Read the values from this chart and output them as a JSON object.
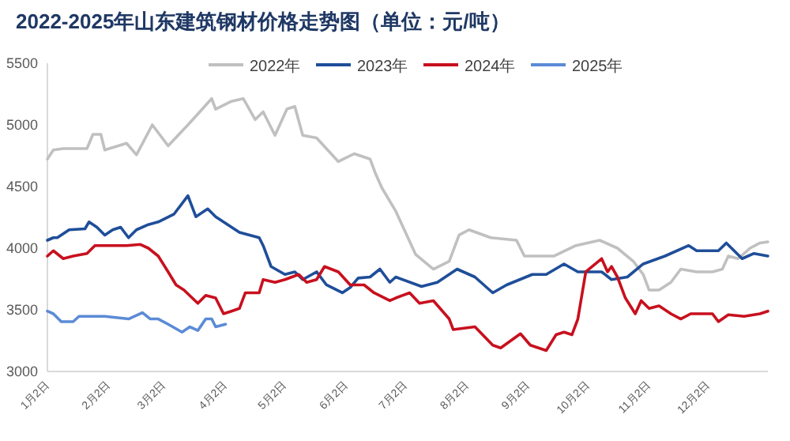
{
  "chart_data": {
    "type": "line",
    "title": "2022-2025年山东建筑钢材价格走势图（单位：元/吨）",
    "legend": "top",
    "xlim": [
      "--01-01",
      "--12-31"
    ],
    "xticks": [
      {
        "value": "--01-02",
        "label": "1月2日"
      },
      {
        "value": "--02-02",
        "label": "2月2日"
      },
      {
        "value": "--03-02",
        "label": "3月2日"
      },
      {
        "value": "--04-02",
        "label": "4月2日"
      },
      {
        "value": "--05-02",
        "label": "5月2日"
      },
      {
        "value": "--06-02",
        "label": "6月2日"
      },
      {
        "value": "--07-02",
        "label": "7月2日"
      },
      {
        "value": "--08-02",
        "label": "8月2日"
      },
      {
        "value": "--09-02",
        "label": "9月2日"
      },
      {
        "value": "--10-02",
        "label": "10月2日"
      },
      {
        "value": "--11-02",
        "label": "11月2日"
      },
      {
        "value": "--12-02",
        "label": "12月2日"
      }
    ],
    "ylim": [
      3000,
      5500
    ],
    "yticks": [
      3000,
      3500,
      4000,
      4500,
      5000,
      5500
    ],
    "series": [
      {
        "name": "2022年",
        "color": "#c0c0c0",
        "x": [
          "--01-01",
          "--01-04",
          "--01-09",
          "--01-21",
          "--01-24",
          "--01-28",
          "--01-30",
          "--02-10",
          "--02-15",
          "--02-23",
          "--03-03",
          "--03-13",
          "--03-19",
          "--03-25",
          "--03-27",
          "--04-04",
          "--04-10",
          "--04-16",
          "--04-20",
          "--04-26",
          "--05-02",
          "--05-06",
          "--05-10",
          "--05-17",
          "--05-28",
          "--06-05",
          "--06-13",
          "--06-16",
          "--06-19",
          "--06-26",
          "--07-06",
          "--07-15",
          "--07-23",
          "--07-28",
          "--08-02",
          "--08-13",
          "--08-26",
          "--08-30",
          "--09-14",
          "--09-25",
          "--10-07",
          "--10-16",
          "--10-24",
          "--10-29",
          "--11-01",
          "--11-06",
          "--11-12",
          "--11-17",
          "--11-25",
          "--12-03",
          "--12-08",
          "--12-11",
          "--12-16",
          "--12-22",
          "--12-27",
          "--12-31"
        ],
        "values": [
          4723,
          4796,
          4808,
          4808,
          4923,
          4923,
          4796,
          4851,
          4757,
          5000,
          4830,
          5000,
          5106,
          5213,
          5128,
          5191,
          5213,
          5043,
          5106,
          4915,
          5128,
          5149,
          4915,
          4894,
          4702,
          4766,
          4723,
          4596,
          4489,
          4300,
          3950,
          3830,
          3894,
          4106,
          4149,
          4085,
          4064,
          3936,
          3936,
          4021,
          4064,
          4000,
          3894,
          3787,
          3660,
          3660,
          3723,
          3830,
          3808,
          3808,
          3830,
          3936,
          3915,
          4000,
          4042,
          4051
        ]
      },
      {
        "name": "2023年",
        "color": "#1f4e99",
        "x": [
          "--01-01",
          "--01-04",
          "--01-06",
          "--01-12",
          "--01-20",
          "--01-22",
          "--01-26",
          "--01-30",
          "--02-03",
          "--02-07",
          "--02-11",
          "--02-15",
          "--02-21",
          "--02-26",
          "--03-06",
          "--03-13",
          "--03-17",
          "--03-23",
          "--03-27",
          "--04-08",
          "--04-18",
          "--04-20",
          "--04-24",
          "--05-01",
          "--05-06",
          "--05-10",
          "--05-17",
          "--05-22",
          "--05-30",
          "--06-03",
          "--06-07",
          "--06-13",
          "--06-18",
          "--06-23",
          "--06-26",
          "--07-09",
          "--07-17",
          "--07-27",
          "--08-05",
          "--08-14",
          "--08-21",
          "--09-03",
          "--09-10",
          "--09-19",
          "--09-26",
          "--10-08",
          "--10-13",
          "--10-21",
          "--10-29",
          "--11-09",
          "--11-21",
          "--11-25",
          "--12-06",
          "--12-10",
          "--12-18",
          "--12-24",
          "--12-31"
        ],
        "values": [
          4064,
          4085,
          4085,
          4149,
          4157,
          4213,
          4170,
          4106,
          4149,
          4170,
          4085,
          4149,
          4191,
          4213,
          4277,
          4425,
          4255,
          4319,
          4255,
          4128,
          4085,
          4021,
          3851,
          3787,
          3808,
          3745,
          3808,
          3702,
          3638,
          3681,
          3757,
          3766,
          3830,
          3723,
          3766,
          3689,
          3723,
          3830,
          3766,
          3638,
          3702,
          3787,
          3787,
          3872,
          3808,
          3808,
          3745,
          3766,
          3872,
          3936,
          4021,
          3979,
          3979,
          4042,
          3915,
          3957,
          3936
        ]
      },
      {
        "name": "2024年",
        "color": "#c8101e",
        "x": [
          "--01-01",
          "--01-04",
          "--01-09",
          "--01-14",
          "--01-21",
          "--01-25",
          "--01-30",
          "--02-10",
          "--02-17",
          "--02-21",
          "--02-26",
          "--03-03",
          "--03-07",
          "--03-11",
          "--03-18",
          "--03-22",
          "--03-27",
          "--03-31",
          "--04-04",
          "--04-08",
          "--04-11",
          "--04-18",
          "--04-20",
          "--04-26",
          "--05-01",
          "--05-08",
          "--05-12",
          "--05-17",
          "--05-21",
          "--05-28",
          "--06-03",
          "--06-10",
          "--06-15",
          "--06-23",
          "--06-26",
          "--07-03",
          "--07-08",
          "--07-15",
          "--07-23",
          "--07-25",
          "--08-05",
          "--08-14",
          "--08-18",
          "--08-28",
          "--09-02",
          "--09-10",
          "--09-15",
          "--09-19",
          "--09-23",
          "--09-26",
          "--09-30",
          "--10-08",
          "--10-11",
          "--10-13",
          "--10-16",
          "--10-20",
          "--10-25",
          "--10-28",
          "--11-01",
          "--11-06",
          "--11-12",
          "--11-17",
          "--11-22",
          "--12-03",
          "--12-06",
          "--12-11",
          "--12-19",
          "--12-27",
          "--12-31"
        ],
        "values": [
          3936,
          3979,
          3915,
          3936,
          3957,
          4021,
          4021,
          4021,
          4030,
          4000,
          3936,
          3808,
          3702,
          3660,
          3553,
          3617,
          3596,
          3468,
          3489,
          3511,
          3638,
          3638,
          3745,
          3723,
          3745,
          3787,
          3723,
          3745,
          3851,
          3808,
          3702,
          3702,
          3638,
          3574,
          3596,
          3638,
          3553,
          3574,
          3426,
          3340,
          3362,
          3213,
          3191,
          3306,
          3213,
          3170,
          3298,
          3319,
          3298,
          3426,
          3808,
          3915,
          3808,
          3851,
          3766,
          3596,
          3468,
          3574,
          3511,
          3532,
          3468,
          3426,
          3468,
          3468,
          3404,
          3460,
          3447,
          3468,
          3489
        ]
      },
      {
        "name": "2025年",
        "color": "#5b8bd6",
        "x": [
          "--01-01",
          "--01-04",
          "--01-08",
          "--01-14",
          "--01-17",
          "--01-30",
          "--02-11",
          "--02-18",
          "--02-22",
          "--02-26",
          "--03-03",
          "--03-10",
          "--03-14",
          "--03-18",
          "--03-22",
          "--03-25",
          "--03-27",
          "--04-01"
        ],
        "values": [
          3489,
          3468,
          3404,
          3404,
          3447,
          3447,
          3426,
          3477,
          3426,
          3426,
          3383,
          3319,
          3362,
          3332,
          3426,
          3426,
          3362,
          3383
        ]
      }
    ]
  }
}
